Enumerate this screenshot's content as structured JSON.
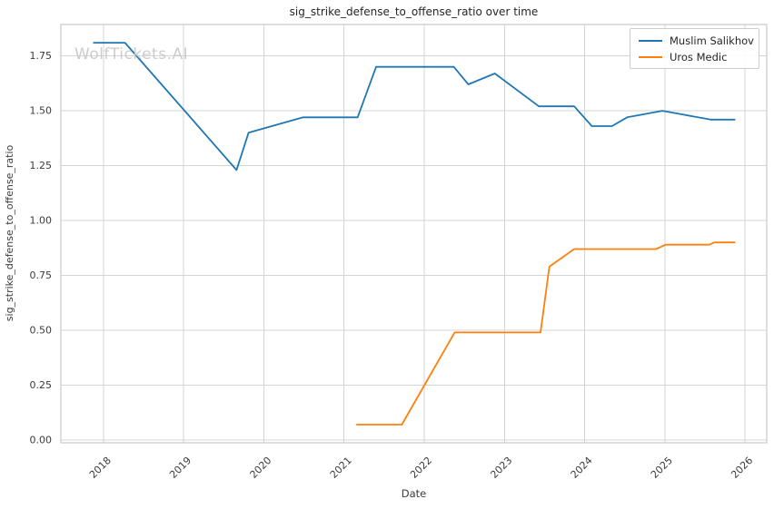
{
  "watermark": "WolfTickets.AI",
  "chart_data": {
    "type": "line",
    "title": "sig_strike_defense_to_offense_ratio over time",
    "xlabel": "Date",
    "ylabel": "sig_strike_defense_to_offense_ratio",
    "grid": true,
    "legend_position": "upper right",
    "xlim": [
      2017.47,
      2026.27
    ],
    "ylim": [
      -0.0125,
      1.893
    ],
    "x_ticks": [
      2018,
      2019,
      2020,
      2021,
      2022,
      2023,
      2024,
      2025,
      2026
    ],
    "x_tick_labels": [
      "2018",
      "2019",
      "2020",
      "2021",
      "2022",
      "2023",
      "2024",
      "2025",
      "2026"
    ],
    "y_ticks": [
      0.0,
      0.25,
      0.5,
      0.75,
      1.0,
      1.25,
      1.5,
      1.75
    ],
    "y_tick_labels": [
      "0.00",
      "0.25",
      "0.50",
      "0.75",
      "1.00",
      "1.25",
      "1.50",
      "1.75"
    ],
    "series": [
      {
        "name": "Muslim Salikhov",
        "color": "#1f77b4",
        "points": [
          [
            2017.88,
            1.81
          ],
          [
            2018.27,
            1.81
          ],
          [
            2019.66,
            1.23
          ],
          [
            2019.81,
            1.4
          ],
          [
            2020.49,
            1.47
          ],
          [
            2021.17,
            1.47
          ],
          [
            2021.4,
            1.7
          ],
          [
            2022.37,
            1.7
          ],
          [
            2022.55,
            1.62
          ],
          [
            2022.88,
            1.67
          ],
          [
            2023.43,
            1.52
          ],
          [
            2023.87,
            1.52
          ],
          [
            2024.09,
            1.43
          ],
          [
            2024.34,
            1.43
          ],
          [
            2024.53,
            1.47
          ],
          [
            2024.97,
            1.5
          ],
          [
            2025.57,
            1.46
          ],
          [
            2025.87,
            1.46
          ]
        ]
      },
      {
        "name": "Uros Medic",
        "color": "#ff7f0e",
        "points": [
          [
            2021.16,
            0.07
          ],
          [
            2021.72,
            0.07
          ],
          [
            2022.38,
            0.49
          ],
          [
            2023.45,
            0.49
          ],
          [
            2023.56,
            0.79
          ],
          [
            2023.87,
            0.87
          ],
          [
            2024.89,
            0.87
          ],
          [
            2025.01,
            0.89
          ],
          [
            2025.55,
            0.89
          ],
          [
            2025.62,
            0.9
          ],
          [
            2025.87,
            0.9
          ]
        ]
      }
    ]
  },
  "style": {
    "grid_color": "#d4d4d4",
    "spine_color": "#c9c9c9",
    "background": "#ffffff"
  }
}
